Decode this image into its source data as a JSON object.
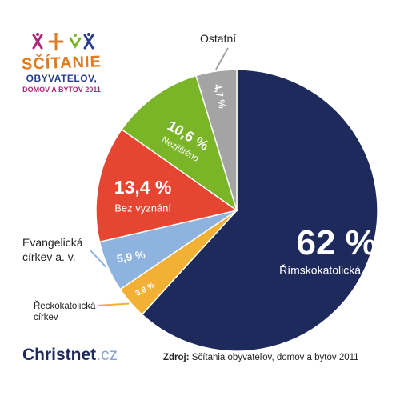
{
  "logo": {
    "line1": "SČÍTANIE",
    "line2": "OBYVATEĽOV,",
    "line3": "DOMOV A BYTOV 2011"
  },
  "labels": {
    "ostatni": "Ostatní",
    "evangelicka_line1": "Evangelická",
    "evangelicka_line2": "církev a. v.",
    "reckokatolicka_line1": "Řeckokatolická",
    "reckokatolicka_line2": "církev"
  },
  "brand": {
    "name": "Christnet",
    "tld": ".cz"
  },
  "source": {
    "label": "Zdroj:",
    "text": " Sčítania obyvateľov, domov a bytov 2011"
  },
  "chart_data": {
    "type": "pie",
    "slices": [
      {
        "value_label": "62 %",
        "name": "Římskokatolická církev",
        "value": 62,
        "color": "#1f2a5c"
      },
      {
        "value_label": "3,8 %",
        "name": "Řeckokatolická církev",
        "value": 3.8,
        "color": "#f2b134"
      },
      {
        "value_label": "5,9 %",
        "name": "Evangelická církev a. v.",
        "value": 5.9,
        "color": "#8eb3de"
      },
      {
        "value_label": "13,4 %",
        "name": "Bez vyznání",
        "value": 13.4,
        "color": "#e64531"
      },
      {
        "value_label": "10,6 %",
        "name": "Nezjištěno",
        "value": 10.6,
        "color": "#7ab528"
      },
      {
        "value_label": "4,7 %",
        "name": "Ostatní",
        "value": 4.7,
        "color": "#a4a4a4"
      }
    ]
  }
}
